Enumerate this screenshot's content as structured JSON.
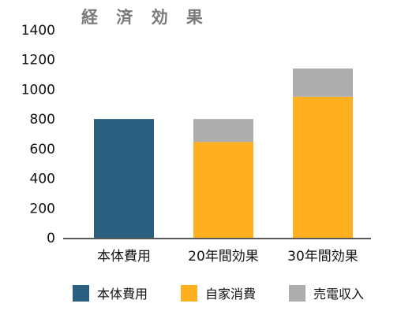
{
  "chart_data": {
    "type": "bar",
    "stacked": true,
    "title": "経 済 効 果",
    "categories": [
      "本体費用",
      "20年間効果",
      "30年間効果"
    ],
    "series": [
      {
        "name": "本体費用",
        "color": "#2b5f80",
        "values": [
          800,
          0,
          0
        ]
      },
      {
        "name": "自家消費",
        "color": "#ffb020",
        "values": [
          0,
          645,
          950
        ]
      },
      {
        "name": "売電収入",
        "color": "#adadad",
        "values": [
          0,
          155,
          190
        ]
      }
    ],
    "ylim": [
      0,
      1400
    ],
    "yticks": [
      "0",
      "200",
      "400",
      "600",
      "800",
      "1000",
      "1200",
      "1400"
    ],
    "grid": false,
    "legend_position": "bottom"
  }
}
